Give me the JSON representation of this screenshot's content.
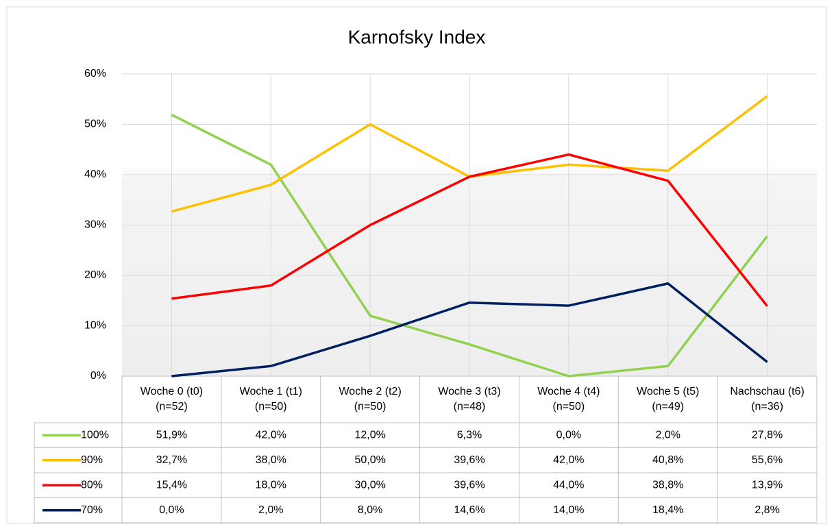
{
  "chart_data": {
    "type": "line",
    "title": "Karnofsky Index",
    "categories": [
      "Woche 0 (t0) (n=52)",
      "Woche 1 (t1) (n=50)",
      "Woche 2 (t2) (n=50)",
      "Woche 3 (t3) (n=48)",
      "Woche 4 (t4) (n=50)",
      "Woche 5 (t5) (n=49)",
      "Nachschau (t6) (n=36)"
    ],
    "series": [
      {
        "name": "100%",
        "color": "#92d050",
        "values": [
          51.9,
          42.0,
          12.0,
          6.3,
          0.0,
          2.0,
          27.8
        ],
        "value_labels": [
          "51,9%",
          "42,0%",
          "12,0%",
          "6,3%",
          "0,0%",
          "2,0%",
          "27,8%"
        ]
      },
      {
        "name": "90%",
        "color": "#ffc000",
        "values": [
          32.7,
          38.0,
          50.0,
          39.6,
          42.0,
          40.8,
          55.6
        ],
        "value_labels": [
          "32,7%",
          "38,0%",
          "50,0%",
          "39,6%",
          "42,0%",
          "40,8%",
          "55,6%"
        ]
      },
      {
        "name": "80%",
        "color": "#ff0000",
        "values": [
          15.4,
          18.0,
          30.0,
          39.6,
          44.0,
          38.8,
          13.9
        ],
        "value_labels": [
          "15,4%",
          "18,0%",
          "30,0%",
          "39,6%",
          "44,0%",
          "38,8%",
          "13,9%"
        ]
      },
      {
        "name": "70%",
        "color": "#002060",
        "values": [
          0.0,
          2.0,
          8.0,
          14.6,
          14.0,
          18.4,
          2.8
        ],
        "value_labels": [
          "0,0%",
          "2,0%",
          "8,0%",
          "14,6%",
          "14,0%",
          "18,4%",
          "2,8%"
        ]
      }
    ],
    "ylim": [
      0,
      60
    ],
    "yticks": [
      {
        "value": 0,
        "label": "0%"
      },
      {
        "value": 10,
        "label": "10%"
      },
      {
        "value": 20,
        "label": "20%"
      },
      {
        "value": 30,
        "label": "30%"
      },
      {
        "value": 40,
        "label": "40%"
      },
      {
        "value": 50,
        "label": "50%"
      },
      {
        "value": 60,
        "label": "60%"
      }
    ],
    "grid": true
  }
}
